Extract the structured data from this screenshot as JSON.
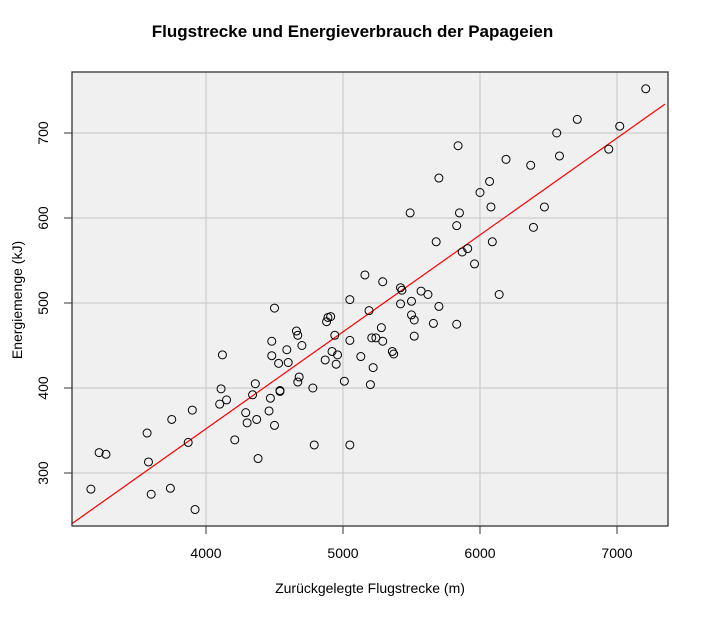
{
  "chart_data": {
    "type": "scatter",
    "title": "Flugstrecke und Energieverbrauch der Papageien",
    "xlabel": "Zurückgelegte Flugstrecke (m)",
    "ylabel": "Energiemenge (kJ)",
    "xlim": [
      3000,
      7350
    ],
    "ylim": [
      240,
      768
    ],
    "xticks": [
      4000,
      5000,
      6000,
      7000
    ],
    "yticks": [
      300,
      400,
      500,
      600,
      700
    ],
    "grid": true,
    "background": "#f0f0f0",
    "point_color": "#000000",
    "marker": "open-circle",
    "regression_line": {
      "color": "#ff0000",
      "x": [
        3000,
        7350
      ],
      "y": [
        238,
        734
      ]
    },
    "points": [
      {
        "x": 3160,
        "y": 281
      },
      {
        "x": 3220,
        "y": 324
      },
      {
        "x": 3270,
        "y": 322
      },
      {
        "x": 3570,
        "y": 347
      },
      {
        "x": 3580,
        "y": 313
      },
      {
        "x": 3600,
        "y": 275
      },
      {
        "x": 3740,
        "y": 282
      },
      {
        "x": 3750,
        "y": 363
      },
      {
        "x": 3870,
        "y": 336
      },
      {
        "x": 3900,
        "y": 374
      },
      {
        "x": 3920,
        "y": 257
      },
      {
        "x": 4100,
        "y": 381
      },
      {
        "x": 4110,
        "y": 399
      },
      {
        "x": 4120,
        "y": 439
      },
      {
        "x": 4150,
        "y": 386
      },
      {
        "x": 4210,
        "y": 339
      },
      {
        "x": 4290,
        "y": 371
      },
      {
        "x": 4300,
        "y": 359
      },
      {
        "x": 4340,
        "y": 392
      },
      {
        "x": 4360,
        "y": 405
      },
      {
        "x": 4370,
        "y": 363
      },
      {
        "x": 4380,
        "y": 317
      },
      {
        "x": 4460,
        "y": 373
      },
      {
        "x": 4470,
        "y": 388
      },
      {
        "x": 4480,
        "y": 455
      },
      {
        "x": 4480,
        "y": 438
      },
      {
        "x": 4500,
        "y": 494
      },
      {
        "x": 4500,
        "y": 356
      },
      {
        "x": 4530,
        "y": 429
      },
      {
        "x": 4540,
        "y": 396
      },
      {
        "x": 4540,
        "y": 397
      },
      {
        "x": 4590,
        "y": 445
      },
      {
        "x": 4600,
        "y": 430
      },
      {
        "x": 4660,
        "y": 467
      },
      {
        "x": 4670,
        "y": 407
      },
      {
        "x": 4670,
        "y": 462
      },
      {
        "x": 4680,
        "y": 413
      },
      {
        "x": 4700,
        "y": 450
      },
      {
        "x": 4780,
        "y": 400
      },
      {
        "x": 4790,
        "y": 333
      },
      {
        "x": 4870,
        "y": 433
      },
      {
        "x": 4880,
        "y": 478
      },
      {
        "x": 4890,
        "y": 483
      },
      {
        "x": 4910,
        "y": 484
      },
      {
        "x": 4920,
        "y": 443
      },
      {
        "x": 4940,
        "y": 462
      },
      {
        "x": 4950,
        "y": 428
      },
      {
        "x": 4960,
        "y": 439
      },
      {
        "x": 5010,
        "y": 408
      },
      {
        "x": 5050,
        "y": 504
      },
      {
        "x": 5050,
        "y": 456
      },
      {
        "x": 5050,
        "y": 333
      },
      {
        "x": 5130,
        "y": 437
      },
      {
        "x": 5160,
        "y": 533
      },
      {
        "x": 5190,
        "y": 491
      },
      {
        "x": 5200,
        "y": 404
      },
      {
        "x": 5210,
        "y": 459
      },
      {
        "x": 5220,
        "y": 424
      },
      {
        "x": 5240,
        "y": 459
      },
      {
        "x": 5280,
        "y": 471
      },
      {
        "x": 5290,
        "y": 455
      },
      {
        "x": 5290,
        "y": 525
      },
      {
        "x": 5360,
        "y": 443
      },
      {
        "x": 5370,
        "y": 440
      },
      {
        "x": 5420,
        "y": 499
      },
      {
        "x": 5420,
        "y": 518
      },
      {
        "x": 5430,
        "y": 515
      },
      {
        "x": 5490,
        "y": 606
      },
      {
        "x": 5500,
        "y": 502
      },
      {
        "x": 5500,
        "y": 486
      },
      {
        "x": 5520,
        "y": 480
      },
      {
        "x": 5520,
        "y": 461
      },
      {
        "x": 5570,
        "y": 514
      },
      {
        "x": 5620,
        "y": 510
      },
      {
        "x": 5660,
        "y": 476
      },
      {
        "x": 5680,
        "y": 572
      },
      {
        "x": 5700,
        "y": 647
      },
      {
        "x": 5700,
        "y": 496
      },
      {
        "x": 5830,
        "y": 475
      },
      {
        "x": 5830,
        "y": 591
      },
      {
        "x": 5840,
        "y": 685
      },
      {
        "x": 5850,
        "y": 606
      },
      {
        "x": 5870,
        "y": 560
      },
      {
        "x": 5910,
        "y": 564
      },
      {
        "x": 5960,
        "y": 546
      },
      {
        "x": 6000,
        "y": 630
      },
      {
        "x": 6070,
        "y": 643
      },
      {
        "x": 6080,
        "y": 613
      },
      {
        "x": 6090,
        "y": 572
      },
      {
        "x": 6140,
        "y": 510
      },
      {
        "x": 6190,
        "y": 669
      },
      {
        "x": 6370,
        "y": 662
      },
      {
        "x": 6390,
        "y": 589
      },
      {
        "x": 6470,
        "y": 613
      },
      {
        "x": 6560,
        "y": 700
      },
      {
        "x": 6580,
        "y": 673
      },
      {
        "x": 6710,
        "y": 716
      },
      {
        "x": 6940,
        "y": 681
      },
      {
        "x": 7020,
        "y": 708
      },
      {
        "x": 7210,
        "y": 752
      }
    ]
  }
}
